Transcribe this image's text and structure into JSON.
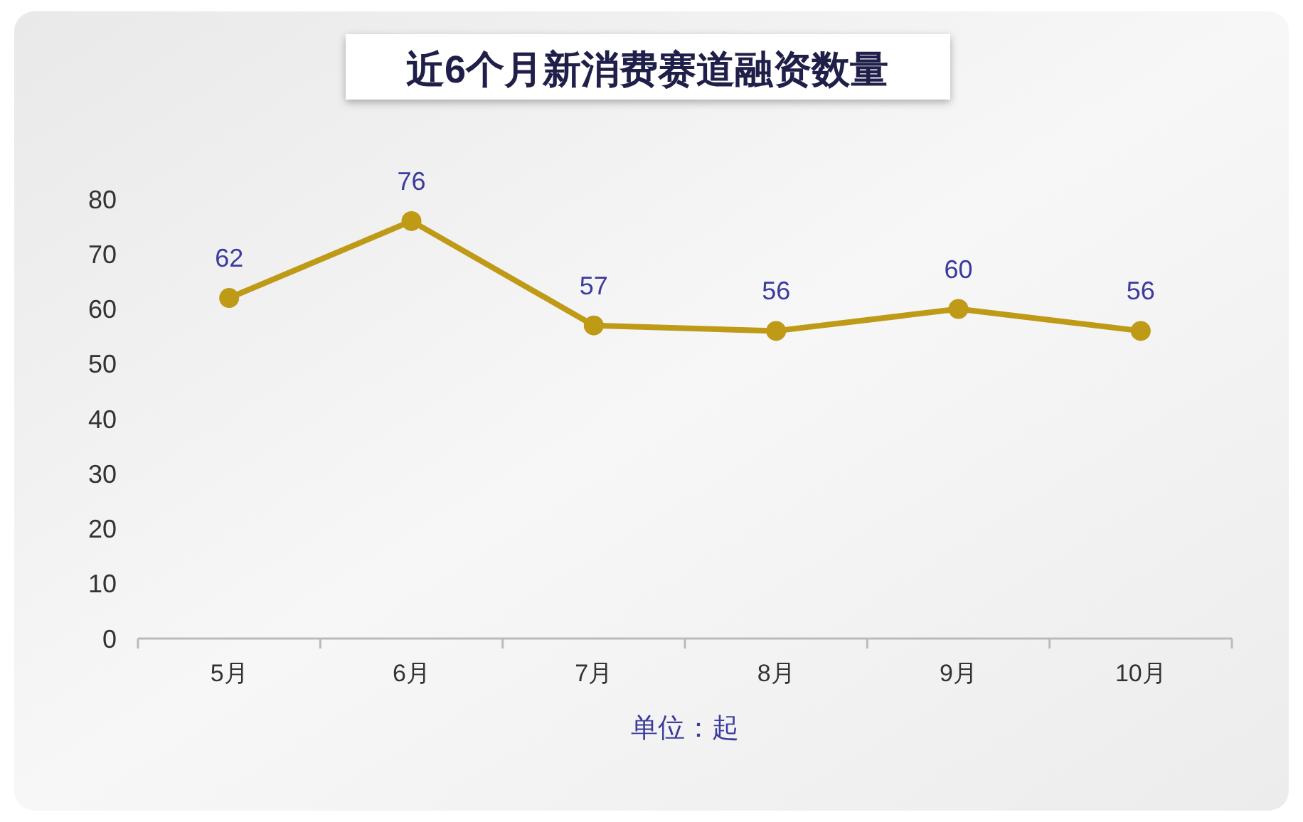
{
  "chart_data": {
    "type": "line",
    "title": "近6个月新消费赛道融资数量",
    "xlabel": "单位：起",
    "categories": [
      "5月",
      "6月",
      "7月",
      "8月",
      "9月",
      "10月"
    ],
    "series": [
      {
        "color": "#bf9a16",
        "values": [
          62,
          76,
          57,
          56,
          60,
          56
        ]
      }
    ],
    "ylim": [
      0,
      80
    ],
    "yticks": [
      0,
      10,
      20,
      30,
      40,
      50,
      60,
      70,
      80
    ],
    "grid": false,
    "marker": "circle",
    "line_style": "solid",
    "data_labels": true
  }
}
